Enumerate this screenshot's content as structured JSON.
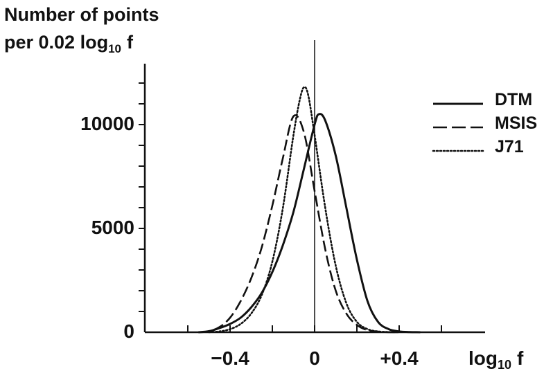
{
  "chart_data": {
    "type": "line",
    "ylabel_line1": "Number of points",
    "ylabel_line2_text": "per 0.02 log",
    "ylabel_line2_sub": "10",
    "ylabel_line2_var": "f",
    "xlabel_text": "log",
    "xlabel_sub": "10",
    "xlabel_var": "f",
    "xlim": [
      -0.65,
      0.65
    ],
    "ylim": [
      0,
      12500
    ],
    "x_tick_labels": [
      {
        "value": -0.4,
        "label": "−0.4"
      },
      {
        "value": 0,
        "label": "0"
      },
      {
        "value": 0.4,
        "label": "+0.4"
      }
    ],
    "x_minor_ticks": [
      -0.6,
      -0.4,
      -0.2,
      0,
      0.2,
      0.4,
      0.6
    ],
    "y_tick_labels": [
      {
        "value": 0,
        "label": "0"
      },
      {
        "value": 5000,
        "label": "5000"
      },
      {
        "value": 10000,
        "label": "10000"
      }
    ],
    "y_minor_ticks": [
      1000,
      2000,
      3000,
      4000,
      5000,
      6000,
      7000,
      8000,
      9000,
      10000,
      11000,
      12000
    ],
    "vertical_reference_line_x": 0,
    "legend_position": "top-right",
    "series": [
      {
        "name": "DTM",
        "style": "solid",
        "x": [
          -0.55,
          -0.5,
          -0.45,
          -0.4,
          -0.35,
          -0.3,
          -0.25,
          -0.2,
          -0.15,
          -0.1,
          -0.05,
          0,
          0.02,
          0.05,
          0.1,
          0.15,
          0.2,
          0.25,
          0.3,
          0.35,
          0.4,
          0.45,
          0.5
        ],
        "y": [
          0,
          50,
          200,
          400,
          700,
          1200,
          1900,
          2900,
          4200,
          5800,
          7900,
          10000,
          10500,
          10200,
          8500,
          6000,
          3500,
          1500,
          500,
          150,
          40,
          10,
          0
        ]
      },
      {
        "name": "MSIS",
        "style": "dashed",
        "x": [
          -0.55,
          -0.5,
          -0.45,
          -0.4,
          -0.35,
          -0.3,
          -0.25,
          -0.2,
          -0.15,
          -0.1,
          -0.05,
          0,
          0.05,
          0.1,
          0.15,
          0.2,
          0.25,
          0.3,
          0.35,
          0.4
        ],
        "y": [
          0,
          50,
          250,
          700,
          1500,
          2600,
          4100,
          6100,
          8400,
          10400,
          9600,
          6800,
          4000,
          2000,
          900,
          350,
          100,
          30,
          5,
          0
        ]
      },
      {
        "name": "J71",
        "style": "dotted",
        "x": [
          -0.5,
          -0.45,
          -0.4,
          -0.35,
          -0.3,
          -0.25,
          -0.2,
          -0.15,
          -0.1,
          -0.07,
          -0.05,
          -0.03,
          0,
          0.05,
          0.1,
          0.15,
          0.2,
          0.25,
          0.3,
          0.35,
          0.4
        ],
        "y": [
          0,
          40,
          150,
          400,
          900,
          1800,
          3400,
          6000,
          9500,
          11200,
          11800,
          11400,
          9500,
          6000,
          3200,
          1400,
          500,
          150,
          40,
          10,
          0
        ]
      }
    ]
  }
}
